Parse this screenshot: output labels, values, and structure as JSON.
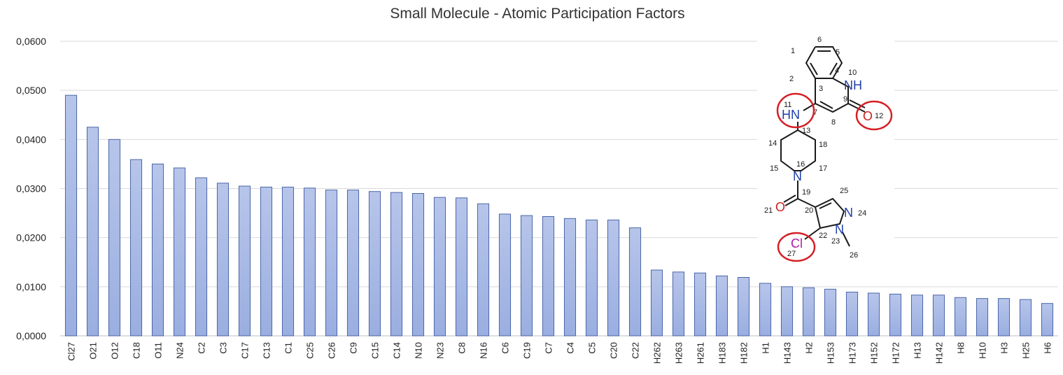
{
  "chart_data": {
    "type": "bar",
    "title": "Small Molecule - Atomic Participation Factors",
    "xlabel": "",
    "ylabel": "",
    "ylim": [
      0,
      0.06
    ],
    "yticks": [
      "0,0000",
      "0,0100",
      "0,0200",
      "0,0300",
      "0,0400",
      "0,0500",
      "0,0600"
    ],
    "categories": [
      "Cl27",
      "O21",
      "O12",
      "C18",
      "O11",
      "N24",
      "C2",
      "C3",
      "C17",
      "C13",
      "C1",
      "C25",
      "C26",
      "C9",
      "C15",
      "C14",
      "N10",
      "N23",
      "C8",
      "N16",
      "C6",
      "C19",
      "C7",
      "C4",
      "C5",
      "C20",
      "C22",
      "H262",
      "H263",
      "H261",
      "H183",
      "H182",
      "H1",
      "H143",
      "H2",
      "H153",
      "H173",
      "H152",
      "H172",
      "H13",
      "H142",
      "H8",
      "H10",
      "H3",
      "H25",
      "H6"
    ],
    "values": [
      0.049,
      0.0425,
      0.04,
      0.0359,
      0.035,
      0.0342,
      0.0322,
      0.0311,
      0.0305,
      0.0303,
      0.0303,
      0.0301,
      0.0297,
      0.0297,
      0.0294,
      0.0292,
      0.029,
      0.0282,
      0.0281,
      0.0269,
      0.0248,
      0.0245,
      0.0243,
      0.0239,
      0.0236,
      0.0236,
      0.022,
      0.0134,
      0.013,
      0.0128,
      0.0122,
      0.0119,
      0.0107,
      0.01,
      0.0098,
      0.0095,
      0.0089,
      0.0087,
      0.0085,
      0.0083,
      0.0083,
      0.0078,
      0.0076,
      0.0076,
      0.0074,
      0.0066
    ],
    "grid": true,
    "legend": "none",
    "bar_color": "#9aaee0"
  },
  "molecule": {
    "atoms": {
      "nh10": "NH",
      "hn11": "HN",
      "o12": "O",
      "n16": "N",
      "o21": "O",
      "n24": "N",
      "n23": "N",
      "cl27": "Cl"
    },
    "numbers": {
      "n1": "1",
      "n2": "2",
      "n3": "3",
      "n4": "4",
      "n5": "5",
      "n6": "6",
      "n7": "7",
      "n8": "8",
      "n9": "9",
      "n10": "10",
      "n11": "11",
      "n12": "12",
      "n13": "13",
      "n14": "14",
      "n15": "15",
      "n16": "16",
      "n17": "17",
      "n18": "18",
      "n19": "19",
      "n20": "20",
      "n21": "21",
      "n22": "22",
      "n23": "23",
      "n24": "24",
      "n25": "25",
      "n26": "26",
      "n27": "27"
    },
    "colors": {
      "nitrogen": "#1f3fa8",
      "oxygen": "#cc1f1f",
      "chlorine": "#b01aa6",
      "highlight": "#d61f26"
    }
  }
}
